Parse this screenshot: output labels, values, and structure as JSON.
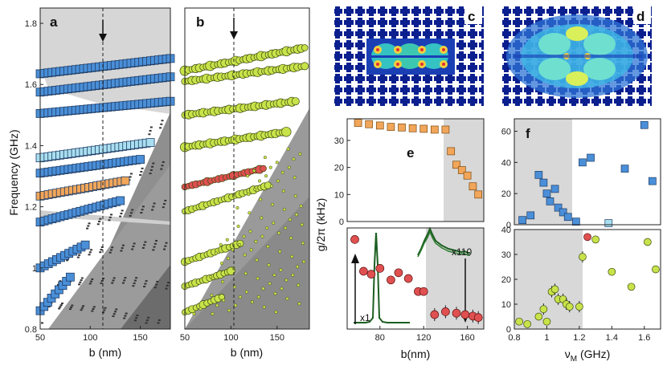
{
  "figure": {
    "panel_labels": [
      "a",
      "b",
      "c",
      "d",
      "e",
      "f"
    ],
    "y_label_ab": "Frequency (GHz)",
    "x_label_ab": "b (nm)",
    "y_label_e": "g/2π (kHz)",
    "x_label_e": "b(nm)",
    "x_label_f": "ν",
    "x_label_f_sub": "M",
    "x_label_f_unit": " (GHz)",
    "annotation_x1": "x1",
    "annotation_x110": "x110"
  },
  "colors": {
    "blue": "#4a8fd8",
    "orange": "#f2a65a",
    "lightblue": "#a9dff0",
    "yellowgreen": "#c8e34a",
    "red": "#e05050",
    "gray": "#d4d4d4",
    "darkgray": "#6a6a6a",
    "navy": "#0b1f8f",
    "green": "#1b5e20"
  },
  "chart_data": [
    {
      "id": "a",
      "type": "scatter",
      "title": "a",
      "xlabel": "b (nm)",
      "ylabel": "Frequency (GHz)",
      "xlim": [
        50,
        180
      ],
      "ylim": [
        0.8,
        1.85
      ],
      "xticks": [
        50,
        100,
        150
      ],
      "yticks": [
        0.8,
        1.0,
        1.2,
        1.4,
        1.6,
        1.8
      ],
      "marker_line_b": 110,
      "series": [
        {
          "name": "band1",
          "color": "blue",
          "x": [
            50,
            180
          ],
          "y": [
            1.635,
            1.685
          ]
        },
        {
          "name": "band2",
          "color": "blue",
          "x": [
            50,
            180
          ],
          "y": [
            1.575,
            1.625
          ]
        },
        {
          "name": "band3",
          "color": "blue",
          "x": [
            50,
            180
          ],
          "y": [
            1.505,
            1.545
          ]
        },
        {
          "name": "band4",
          "color": "lightblue",
          "x": [
            50,
            160
          ],
          "y": [
            1.36,
            1.41
          ]
        },
        {
          "name": "band5",
          "color": "blue",
          "x": [
            50,
            150
          ],
          "y": [
            1.31,
            1.355
          ]
        },
        {
          "name": "band6",
          "color": "orange",
          "x": [
            50,
            135
          ],
          "y": [
            1.235,
            1.285
          ]
        },
        {
          "name": "band7",
          "color": "blue",
          "x": [
            50,
            130
          ],
          "y": [
            1.15,
            1.22
          ]
        },
        {
          "name": "band8",
          "color": "blue",
          "x": [
            50,
            95
          ],
          "y": [
            1.0,
            1.075
          ]
        },
        {
          "name": "band9",
          "color": "blue",
          "x": [
            50,
            80
          ],
          "y": [
            0.86,
            0.97
          ]
        }
      ]
    },
    {
      "id": "b",
      "type": "scatter",
      "title": "b",
      "xlabel": "b (nm)",
      "xlim": [
        50,
        185
      ],
      "ylim": [
        0.8,
        1.85
      ],
      "xticks": [
        50,
        100,
        150
      ],
      "marker_line_b": 100,
      "series": [
        {
          "name": "r1",
          "color": "yellowgreen",
          "x": [
            50,
            180
          ],
          "y": [
            1.645,
            1.72
          ]
        },
        {
          "name": "r2",
          "color": "yellowgreen",
          "x": [
            50,
            180
          ],
          "y": [
            1.61,
            1.66
          ]
        },
        {
          "name": "r3",
          "color": "yellowgreen",
          "x": [
            50,
            170
          ],
          "y": [
            1.5,
            1.545
          ]
        },
        {
          "name": "r4",
          "color": "yellowgreen",
          "x": [
            50,
            160
          ],
          "y": [
            1.395,
            1.445
          ]
        },
        {
          "name": "r5",
          "color": "red",
          "x": [
            50,
            135
          ],
          "y": [
            1.265,
            1.325
          ]
        },
        {
          "name": "r6",
          "color": "yellowgreen",
          "x": [
            50,
            140
          ],
          "y": [
            1.185,
            1.27
          ]
        },
        {
          "name": "r7",
          "color": "yellowgreen",
          "x": [
            50,
            110
          ],
          "y": [
            1.02,
            1.08
          ]
        },
        {
          "name": "r8",
          "color": "yellowgreen",
          "x": [
            50,
            100
          ],
          "y": [
            0.94,
            0.99
          ]
        },
        {
          "name": "r9",
          "color": "yellowgreen",
          "x": [
            50,
            90
          ],
          "y": [
            0.855,
            0.905
          ]
        }
      ]
    },
    {
      "id": "e_top",
      "type": "scatter",
      "title": "e",
      "xlim": [
        50,
        175
      ],
      "ylim": [
        0,
        38
      ],
      "yticks": [
        0,
        10,
        20,
        30
      ],
      "shaded_from_x": 142,
      "color": "orange",
      "x": [
        60,
        70,
        80,
        90,
        100,
        110,
        120,
        130,
        140,
        145,
        150,
        155,
        160,
        165,
        170
      ],
      "y": [
        36.5,
        36,
        35.5,
        35,
        34.8,
        34.5,
        34.3,
        34,
        34,
        26,
        21,
        19,
        17,
        13,
        10
      ]
    },
    {
      "id": "e_bottom",
      "type": "scatter",
      "xlabel": "b(nm)",
      "xlim": [
        50,
        175
      ],
      "xticks": [
        80,
        120,
        160
      ],
      "shaded_from_x": 125,
      "color": "red",
      "x": [
        57,
        65,
        72,
        80,
        90,
        97,
        106,
        115,
        120,
        130,
        140,
        150,
        158,
        165,
        170
      ],
      "y": [
        62,
        40,
        38,
        42,
        34,
        39,
        35,
        26,
        26,
        10,
        12,
        11,
        10,
        9,
        8
      ],
      "annotations": [
        "x1",
        "x110"
      ]
    },
    {
      "id": "f_top",
      "type": "scatter",
      "title": "f",
      "xlim": [
        0.8,
        1.7
      ],
      "ylim": [
        0,
        68
      ],
      "yticks": [
        0,
        20,
        40,
        60
      ],
      "shaded_to_x": 1.13,
      "color": "blue",
      "x": [
        0.85,
        0.9,
        0.95,
        0.98,
        1.0,
        1.02,
        1.05,
        1.07,
        1.1,
        1.13,
        1.18,
        1.22,
        1.27,
        1.38,
        1.48,
        1.6,
        1.65
      ],
      "y": [
        3,
        6,
        32,
        27,
        20,
        15,
        23,
        11,
        8,
        5,
        2,
        40,
        43,
        1,
        36,
        64,
        28
      ]
    },
    {
      "id": "f_bottom",
      "type": "scatter",
      "xlabel": "νM (GHz)",
      "xlim": [
        0.8,
        1.7
      ],
      "ylim": [
        0,
        40
      ],
      "xticks": [
        0.8,
        1.0,
        1.2,
        1.4,
        1.6
      ],
      "yticks": [
        0,
        10,
        20,
        30,
        40
      ],
      "shaded_to_x": 1.2,
      "color": "yellowgreen",
      "x": [
        0.83,
        0.88,
        0.95,
        0.98,
        1.0,
        1.03,
        1.05,
        1.07,
        1.1,
        1.12,
        1.14,
        1.2,
        1.22,
        1.3,
        1.4,
        1.52,
        1.62,
        1.67
      ],
      "y": [
        3,
        2,
        5,
        8,
        3,
        15,
        16,
        12,
        12,
        10,
        9,
        9,
        29,
        36,
        23,
        17,
        35,
        24
      ],
      "highlight": {
        "x": 1.25,
        "y": 37,
        "color": "red"
      }
    }
  ]
}
